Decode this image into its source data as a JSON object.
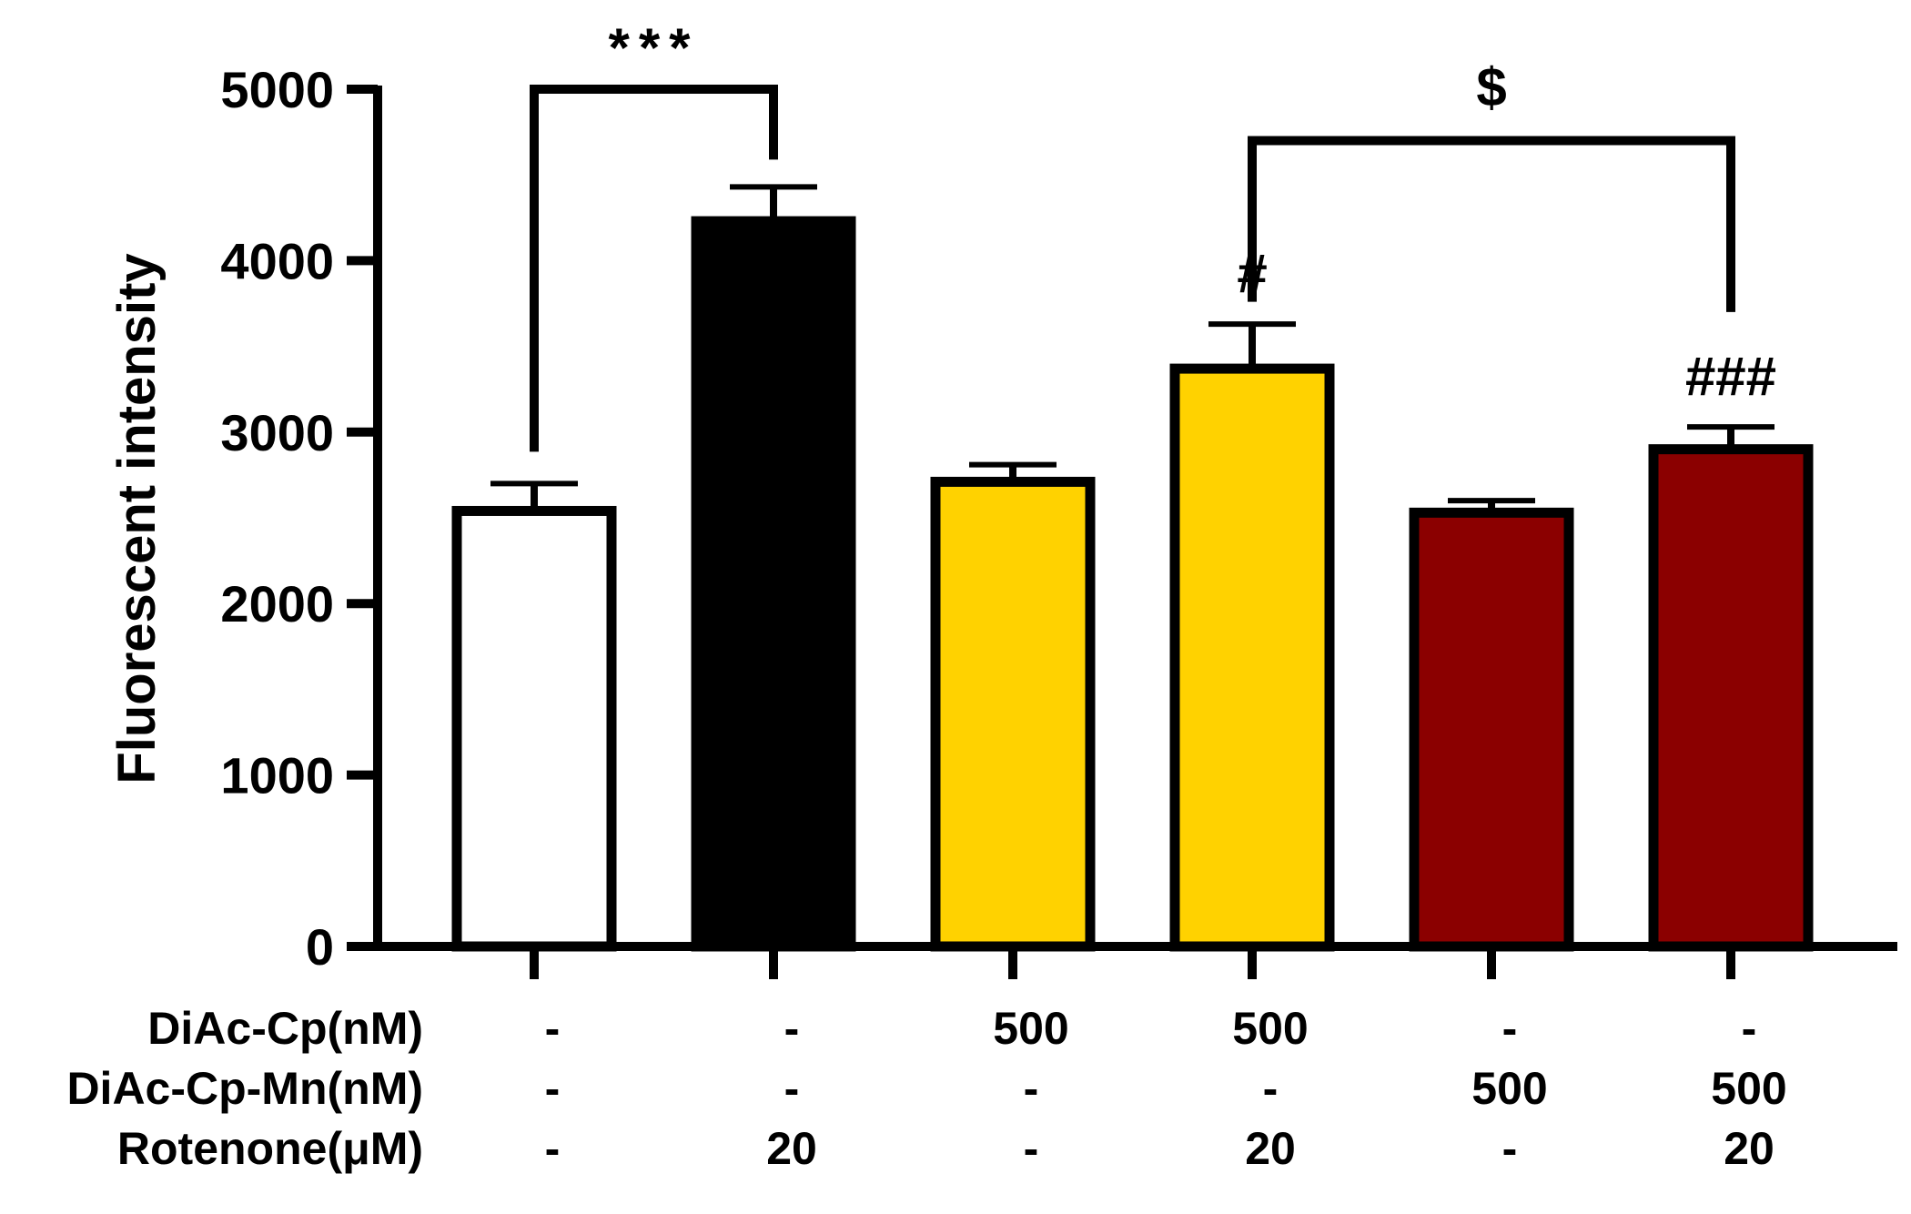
{
  "chart_data": {
    "type": "bar",
    "title": "",
    "xlabel": "",
    "ylabel": "Fluorescent intensity",
    "ylim": [
      0,
      5000
    ],
    "yticks": [
      0,
      1000,
      2000,
      3000,
      4000,
      5000
    ],
    "yticks_labels": [
      "0",
      "1000",
      "2000",
      "3000",
      "4000",
      "5000"
    ],
    "grid": false,
    "legend": "none",
    "groups": [
      {
        "id": "g1",
        "value": 2540,
        "error": 160,
        "fill": "#ffffff"
      },
      {
        "id": "g2",
        "value": 4230,
        "error": 200,
        "fill": "#000000"
      },
      {
        "id": "g3",
        "value": 2710,
        "error": 100,
        "fill": "#ffd200"
      },
      {
        "id": "g4",
        "value": 3370,
        "error": 260,
        "fill": "#ffd200"
      },
      {
        "id": "g5",
        "value": 2530,
        "error": 70,
        "fill": "#8b0000"
      },
      {
        "id": "g6",
        "value": 2900,
        "error": 130,
        "fill": "#8b0000"
      }
    ],
    "treatment_rows": [
      {
        "label": "DiAc-Cp(nM)",
        "values": [
          "-",
          "-",
          "500",
          "500",
          "-",
          "-"
        ]
      },
      {
        "label": "DiAc-Cp-Mn(nM)",
        "values": [
          "-",
          "-",
          "-",
          "-",
          "500",
          "500"
        ]
      },
      {
        "label": "Rotenone(μM)",
        "values": [
          "-",
          "20",
          "-",
          "20",
          "-",
          "20"
        ]
      }
    ],
    "comparisons": [
      {
        "from": 0,
        "to": 1,
        "label": "***",
        "level": 5000
      },
      {
        "from": 3,
        "to": 5,
        "label": "$",
        "level": 4700
      }
    ],
    "bar_annotations": [
      {
        "index": 3,
        "label": "#"
      },
      {
        "index": 5,
        "label": "###"
      }
    ]
  }
}
